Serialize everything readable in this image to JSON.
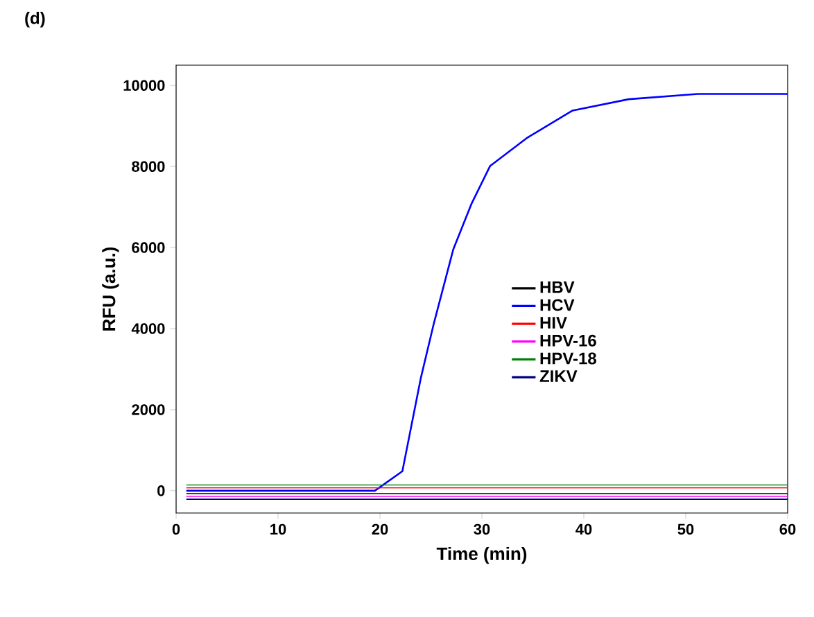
{
  "chart_data": {
    "type": "line",
    "title": "(d)",
    "xlabel": "Time (min)",
    "ylabel": "RFU (a.u.)",
    "xlim": [
      0,
      60
    ],
    "ylim": [
      -550,
      10500
    ],
    "xticks": [
      0,
      10,
      20,
      30,
      40,
      50,
      60
    ],
    "yticks": [
      0,
      2000,
      4000,
      6000,
      8000,
      10000
    ],
    "legend": "bottom right",
    "grid": false,
    "marker": "none",
    "line_style": "solid",
    "series": [
      {
        "name": "HBV",
        "color": "#000000",
        "x": [
          1,
          20,
          40,
          60
        ],
        "values": [
          -70,
          -70,
          -70,
          -70
        ]
      },
      {
        "name": "HCV",
        "color": "#0000ff",
        "x": [
          1,
          10,
          19.5,
          22.2,
          24,
          25.3,
          27.2,
          29,
          30.8,
          34.4,
          38.9,
          44.4,
          51.2,
          60
        ],
        "values": [
          0,
          0,
          0,
          480,
          2770,
          4140,
          5960,
          7090,
          8010,
          8700,
          9380,
          9660,
          9790,
          9790
        ]
      },
      {
        "name": "HIV",
        "color": "#ff0000",
        "x": [
          1,
          20,
          40,
          60
        ],
        "values": [
          70,
          70,
          70,
          70
        ]
      },
      {
        "name": "HPV-16",
        "color": "#ff00ff",
        "x": [
          1,
          20,
          40,
          60
        ],
        "values": [
          -140,
          -140,
          -140,
          -140
        ]
      },
      {
        "name": "HPV-18",
        "color": "#008000",
        "x": [
          1,
          20,
          40,
          60
        ],
        "values": [
          140,
          140,
          140,
          140
        ]
      },
      {
        "name": "ZIKV",
        "color": "#000080",
        "x": [
          1,
          20,
          40,
          60
        ],
        "values": [
          -210,
          -210,
          -210,
          -210
        ]
      }
    ]
  }
}
